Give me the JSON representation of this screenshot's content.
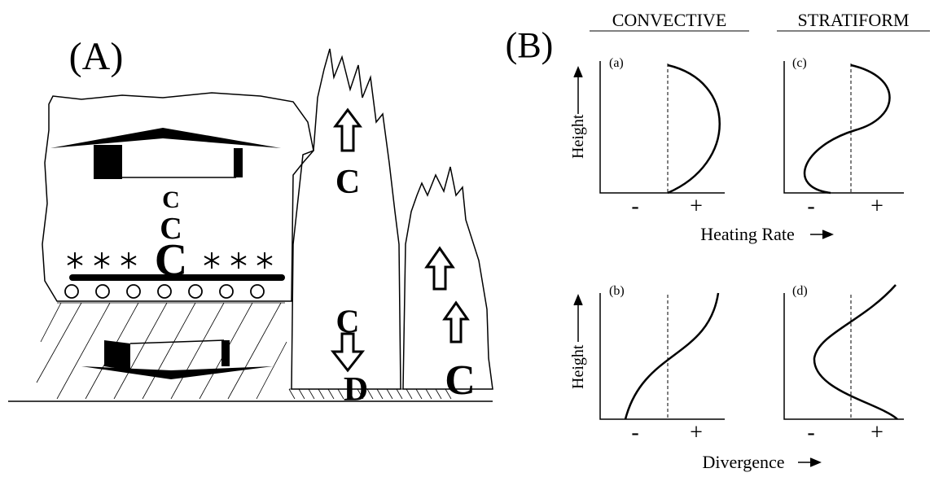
{
  "panel_a": {
    "label": "(A)",
    "stratiform_letters": [
      "C",
      "C",
      "C"
    ],
    "tower_letters": [
      "C",
      "C",
      "D"
    ],
    "small_tower_letter": "C"
  },
  "panel_b": {
    "label": "(B)",
    "columns": [
      "CONVECTIVE",
      "STRATIFORM"
    ],
    "plots": [
      {
        "label": "(a)",
        "y_label": "Height",
        "x_signs": [
          "-",
          "+"
        ]
      },
      {
        "label": "(b)",
        "y_label": "Height",
        "x_signs": [
          "-",
          "+"
        ]
      },
      {
        "label": "(c)",
        "x_signs": [
          "-",
          "+"
        ]
      },
      {
        "label": "(d)",
        "x_signs": [
          "-",
          "+"
        ]
      }
    ],
    "x_labels": [
      "Heating Rate",
      "Divergence"
    ]
  }
}
